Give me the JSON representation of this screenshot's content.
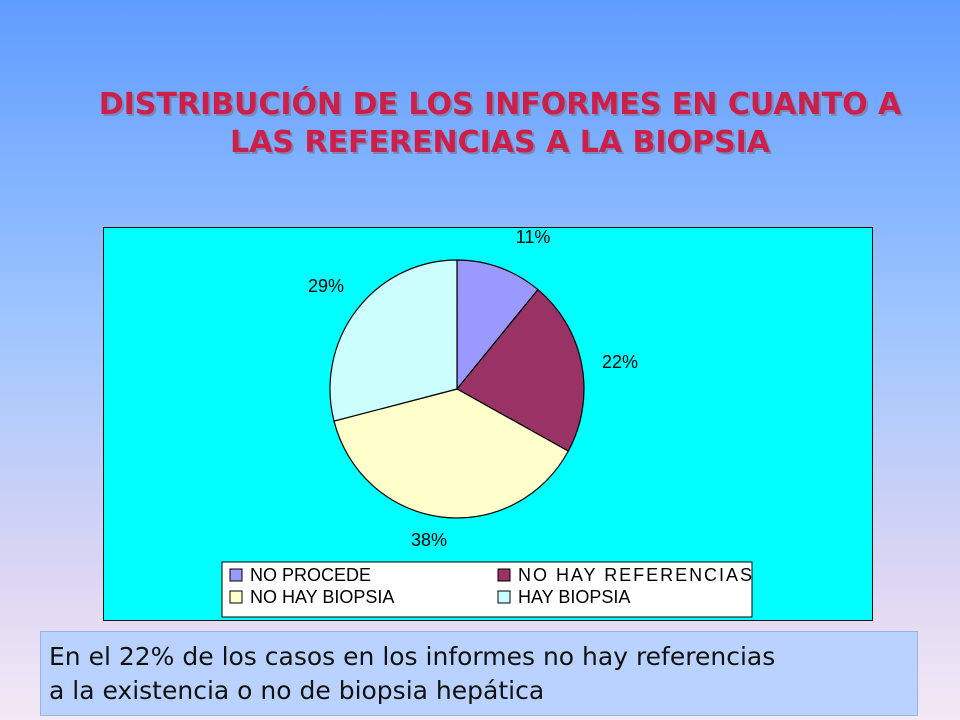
{
  "title": {
    "line1": "DISTRIBUCIÓN DE LOS INFORMES EN CUANTO A",
    "line2": "LAS REFERENCIAS A LA BIOPSIA"
  },
  "chart_data": {
    "type": "pie",
    "categories": [
      "NO PROCEDE",
      "NO HAY REFERENCIAS",
      "NO HAY BIOPSIA",
      "HAY BIOPSIA"
    ],
    "values": [
      11,
      22,
      38,
      29
    ],
    "labels": [
      "11%",
      "22%",
      "38%",
      "29%"
    ],
    "colors": [
      "#9999ff",
      "#993366",
      "#ffffcc",
      "#ccffff"
    ],
    "background": "#00ffff",
    "legend_position": "bottom"
  },
  "caption": {
    "line1": "En el 22% de los casos en los informes no hay referencias",
    "line2": "a la existencia o no de biopsia hepática"
  }
}
